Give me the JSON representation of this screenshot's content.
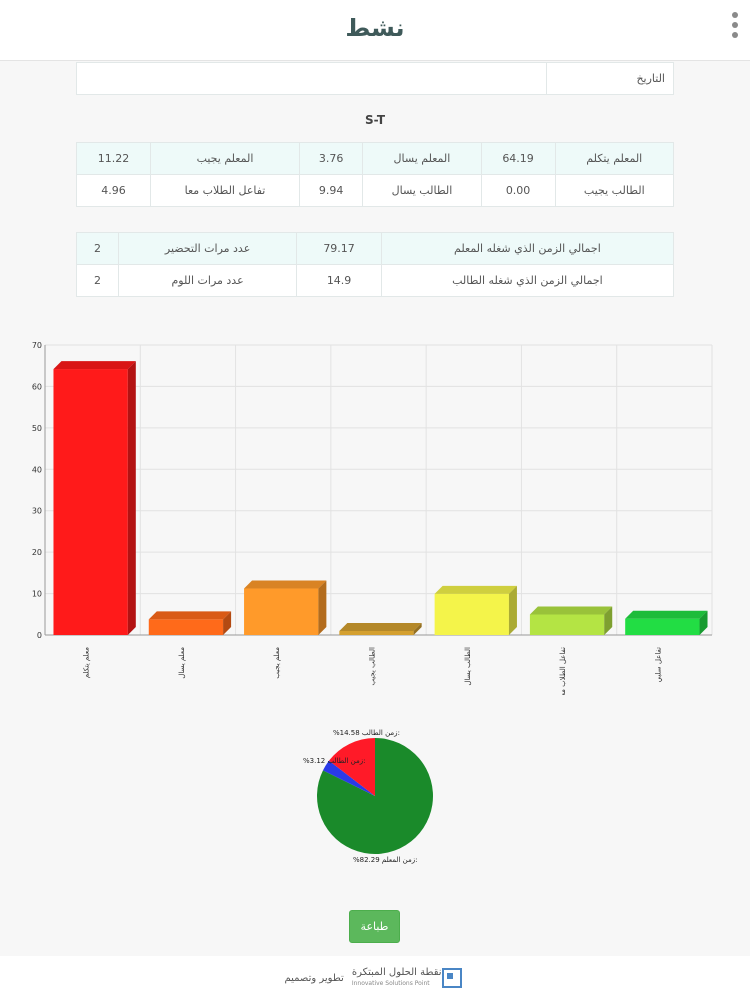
{
  "header": {
    "title": "نشط"
  },
  "date_row": {
    "label": "التاريخ",
    "value": ""
  },
  "st_title": "S-T",
  "stats": {
    "rows": [
      [
        {
          "label": "المعلم يتكلم",
          "value": "64.19"
        },
        {
          "label": "المعلم يسال",
          "value": "3.76"
        },
        {
          "label": "المعلم يجيب",
          "value": "11.22"
        }
      ],
      [
        {
          "label": "الطالب يجيب",
          "value": "0.00"
        },
        {
          "label": "الطالب يسال",
          "value": "9.94"
        },
        {
          "label": "تفاعل الطلاب معا",
          "value": "4.96"
        }
      ]
    ]
  },
  "totals": {
    "rows": [
      [
        {
          "label": "اجمالي الزمن الذي شغله المعلم",
          "value": "79.17"
        },
        {
          "label": "عدد مرات التحضير",
          "value": "2"
        }
      ],
      [
        {
          "label": "اجمالي الزمن الذي شغله الطالب",
          "value": "14.9"
        },
        {
          "label": "عدد مرات اللوم",
          "value": "2"
        }
      ]
    ]
  },
  "chart_data": [
    {
      "type": "bar",
      "categories": [
        "معلم يتكلم",
        "معلم يسال",
        "معلم يجيب",
        "الطالب يجيب",
        "الطالب يسال",
        "تفاعل الطلاب معا",
        "تفاعل سلبي"
      ],
      "values": [
        64.19,
        3.76,
        11.22,
        0.0,
        9.94,
        4.96,
        3.93
      ],
      "colors": [
        "#ff1a1a",
        "#ff6a1a",
        "#ff9a2a",
        "#d4a030",
        "#f4f44a",
        "#b4e444",
        "#22dd44"
      ],
      "ylim": [
        0,
        70
      ],
      "yticks": [
        0,
        10,
        20,
        30,
        40,
        50,
        60,
        70
      ],
      "grid": true
    },
    {
      "type": "pie",
      "slices": [
        {
          "label": "زمن المعلم:",
          "value": 82.29,
          "color": "#1a8a2a"
        },
        {
          "label": "زمن الطالب:",
          "value": 3.12,
          "color": "#2a3ae8"
        },
        {
          "label": "زمن الطالب:",
          "value": 14.58,
          "color": "#ff1a28"
        }
      ],
      "value_labels": [
        "%82.29",
        "%3.12",
        "%14.58"
      ]
    }
  ],
  "print_button": {
    "label": "طباعة"
  },
  "footer": {
    "prefix": "تطوير وتصميم",
    "brand": "نقطة الحلول المبتكرة",
    "brand_sub": "Innovative Solutions Point"
  }
}
